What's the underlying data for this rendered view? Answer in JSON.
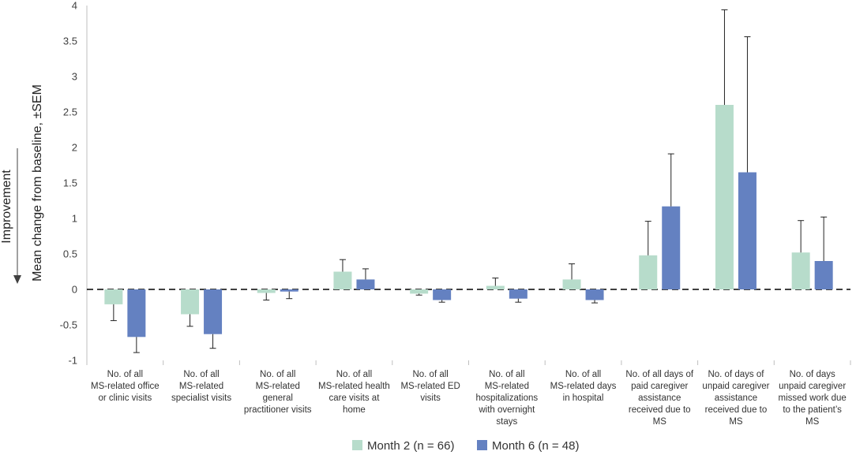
{
  "chart_data": {
    "type": "bar",
    "ylabel": "Mean change from baseline, ±SEM",
    "improvement_label": "Improvement",
    "ylim": [
      -1,
      4
    ],
    "yticks": [
      "-1",
      "-0.5",
      "0",
      "0.5",
      "1",
      "1.5",
      "2",
      "2.5",
      "3",
      "3.5",
      "4"
    ],
    "categories": [
      [
        "No. of all",
        "MS-related office",
        "or clinic visits"
      ],
      [
        "No. of all",
        "MS-related",
        "specialist visits"
      ],
      [
        "No. of all",
        "MS-related",
        "general",
        "practitioner visits"
      ],
      [
        "No. of all",
        "MS-related health",
        "care visits at",
        "home"
      ],
      [
        "No. of all",
        "MS-related ED",
        "visits"
      ],
      [
        "No. of all",
        "MS-related",
        "hospitalizations",
        "with overnight",
        "stays"
      ],
      [
        "No. of all",
        "MS-related days",
        "in hospital"
      ],
      [
        "No. of all days of",
        "paid caregiver",
        "assistance",
        "received due to",
        "MS"
      ],
      [
        "No. of days of",
        "unpaid caregiver",
        "assistance",
        "received due to",
        "MS"
      ],
      [
        "No. of days",
        "unpaid caregiver",
        "missed work due",
        "to the patient’s",
        "MS"
      ]
    ],
    "series": [
      {
        "name": "Month 2 (n = 66)",
        "color": "#b7dccb",
        "values": [
          -0.21,
          -0.35,
          -0.05,
          0.25,
          -0.06,
          0.05,
          0.14,
          0.48,
          2.6,
          0.52
        ],
        "sem": [
          0.23,
          0.17,
          0.1,
          0.17,
          0.02,
          0.11,
          0.22,
          0.48,
          1.34,
          0.45
        ]
      },
      {
        "name": "Month 6 (n = 48)",
        "color": "#6481c1",
        "values": [
          -0.67,
          -0.63,
          -0.03,
          0.14,
          -0.15,
          -0.13,
          -0.15,
          1.17,
          1.65,
          0.4
        ],
        "sem": [
          0.22,
          0.2,
          0.1,
          0.15,
          0.03,
          0.05,
          0.04,
          0.74,
          1.91,
          0.62
        ]
      }
    ]
  }
}
